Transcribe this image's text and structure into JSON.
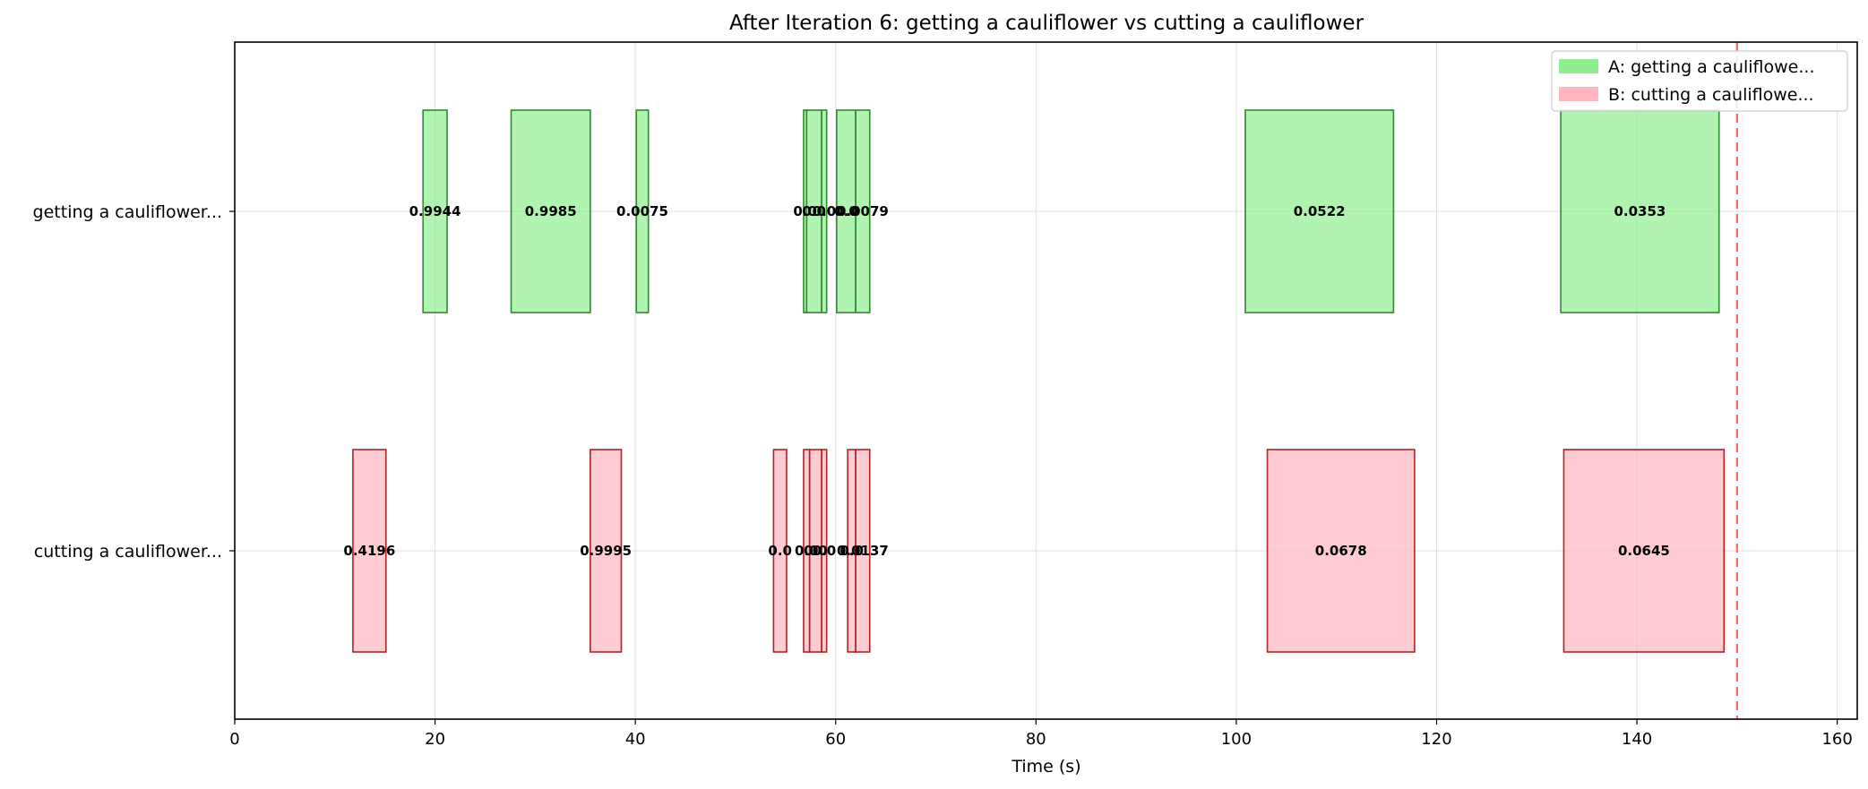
{
  "chart_data": {
    "type": "bar",
    "title": "After Iteration 6: getting a cauliflower vs cutting a cauliflower",
    "xlabel": "Time (s)",
    "ylabel": "",
    "xlim": [
      0,
      162
    ],
    "xticks": [
      0,
      20,
      40,
      60,
      80,
      100,
      120,
      140,
      160
    ],
    "grid": true,
    "legend_position": "top-right",
    "reference_line": {
      "x": 150,
      "color": "#ff6b6b",
      "style": "dashed"
    },
    "categories": [
      "getting a cauliflower...",
      "cutting a cauliflower..."
    ],
    "series": [
      {
        "name": "A: getting a cauliflowe...",
        "fill": "#90ee90",
        "edge": "#2e8b2e",
        "segments": [
          {
            "start": 18.8,
            "end": 21.2,
            "label": "0.9944"
          },
          {
            "start": 27.6,
            "end": 35.5,
            "label": "0.9985"
          },
          {
            "start": 40.1,
            "end": 41.3,
            "label": "0.0075"
          },
          {
            "start": 56.8,
            "end": 57.1,
            "label": "0.0"
          },
          {
            "start": 57.1,
            "end": 58.6,
            "label": "0.0"
          },
          {
            "start": 58.6,
            "end": 59.1,
            "label": "0.0"
          },
          {
            "start": 60.1,
            "end": 62.0,
            "label": "0.0"
          },
          {
            "start": 62.0,
            "end": 63.4,
            "label": "0.0079"
          },
          {
            "start": 100.9,
            "end": 115.7,
            "label": "0.0522"
          },
          {
            "start": 132.4,
            "end": 148.2,
            "label": "0.0353"
          }
        ]
      },
      {
        "name": "B: cutting a cauliflowe...",
        "fill": "#ffb6c1",
        "edge": "#b22222",
        "segments": [
          {
            "start": 11.8,
            "end": 15.1,
            "label": "0.4196"
          },
          {
            "start": 35.5,
            "end": 38.6,
            "label": "0.9995"
          },
          {
            "start": 53.8,
            "end": 55.1,
            "label": "0.0"
          },
          {
            "start": 56.8,
            "end": 57.4,
            "label": "0.0"
          },
          {
            "start": 57.4,
            "end": 58.6,
            "label": "0.0"
          },
          {
            "start": 58.6,
            "end": 59.1,
            "label": "0.0"
          },
          {
            "start": 61.2,
            "end": 62.0,
            "label": "0.0"
          },
          {
            "start": 62.0,
            "end": 63.4,
            "label": "0.0137"
          },
          {
            "start": 103.1,
            "end": 117.8,
            "label": "0.0678"
          },
          {
            "start": 132.7,
            "end": 148.7,
            "label": "0.0645"
          }
        ]
      }
    ]
  }
}
